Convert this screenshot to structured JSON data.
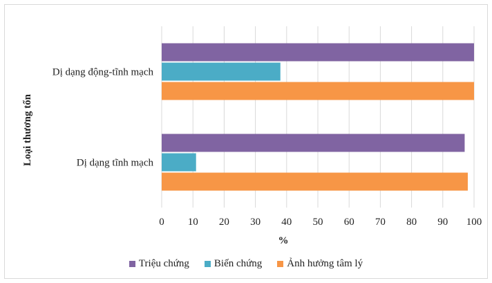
{
  "chart_data": {
    "type": "bar",
    "orientation": "horizontal",
    "categories": [
      "Dị dạng động-tĩnh mạch",
      "Dị dạng tĩnh mạch"
    ],
    "series": [
      {
        "name": "Triệu chứng",
        "color": "#8064a2",
        "values": [
          100,
          97
        ]
      },
      {
        "name": "Biến chứng",
        "color": "#4bacc6",
        "values": [
          38,
          11
        ]
      },
      {
        "name": "Ảnh hưởng tâm lý",
        "color": "#f79646",
        "values": [
          100,
          98
        ]
      }
    ],
    "xlabel": "%",
    "ylabel": "Loại thương tổn",
    "xlim": [
      0,
      100
    ],
    "xticks": [
      0,
      10,
      20,
      30,
      40,
      50,
      60,
      70,
      80,
      90,
      100
    ],
    "grid": "vertical",
    "legend": "bottom"
  }
}
